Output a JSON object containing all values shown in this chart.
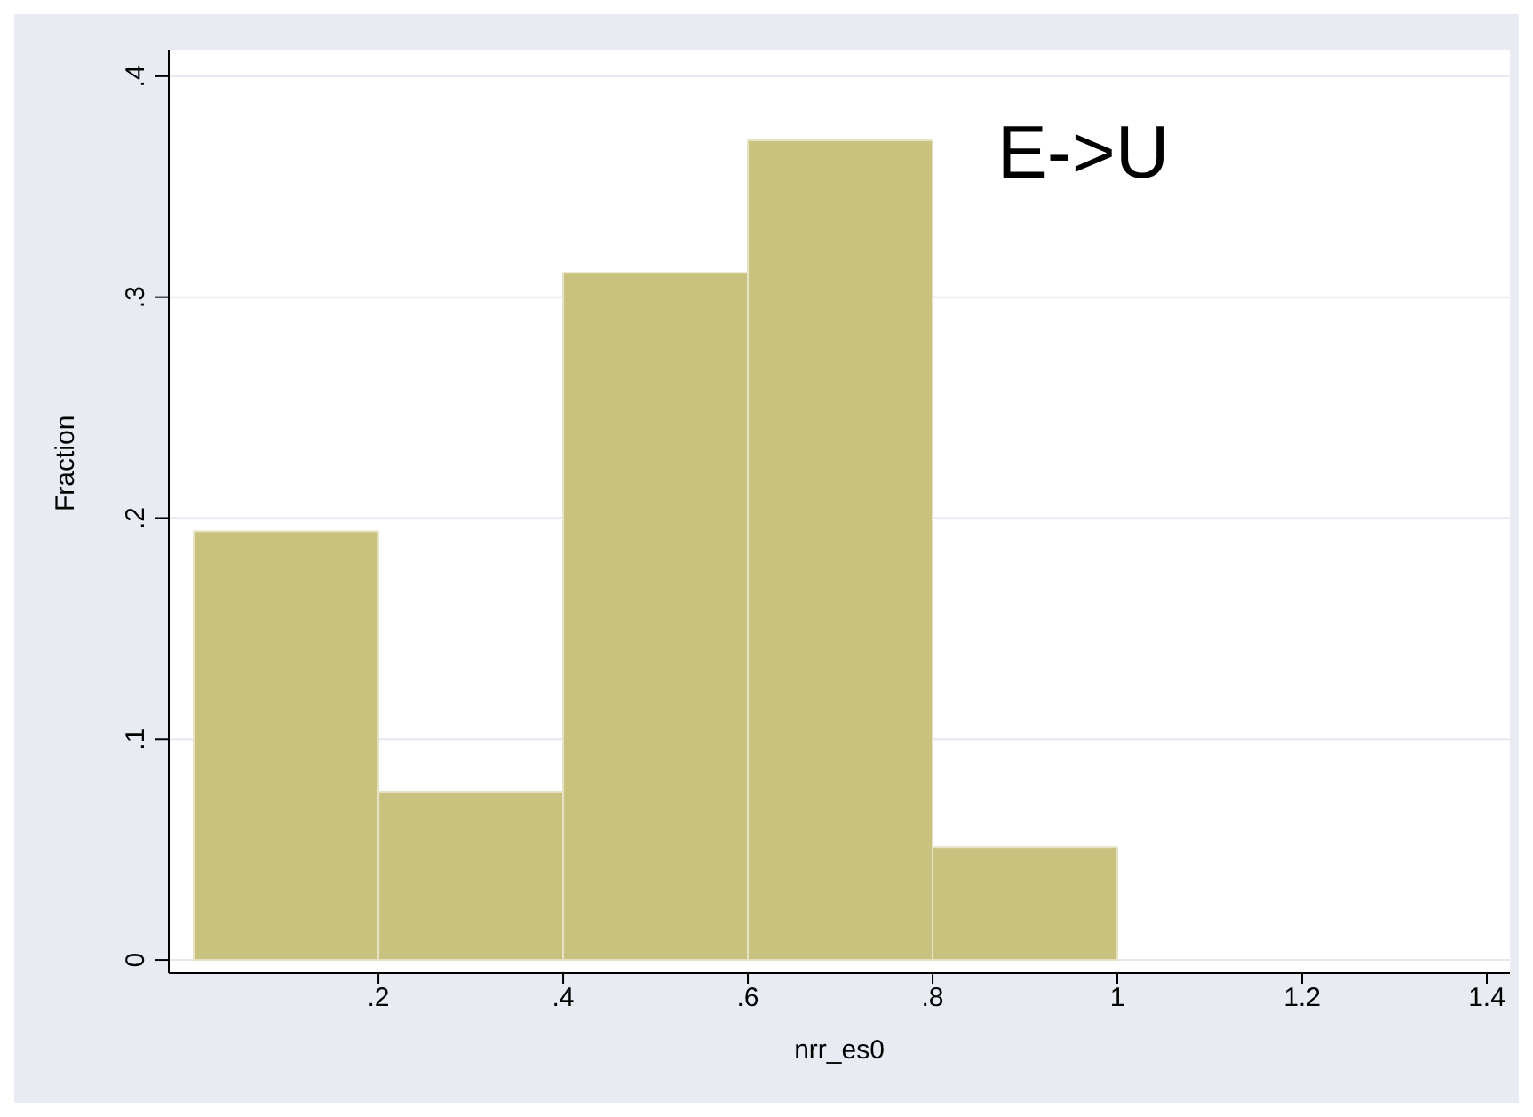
{
  "chart_data": {
    "type": "histogram",
    "xlabel": "nrr_es0",
    "ylabel": "Fraction",
    "bins": [
      0,
      0.2,
      0.4,
      0.6,
      0.8,
      1
    ],
    "values": [
      0.194,
      0.076,
      0.311,
      0.371,
      0.051
    ],
    "color": "#c9c27e",
    "xlim": [
      -0.027,
      1.425
    ],
    "xticks": [
      {
        "value": 0.2,
        "label": ".2"
      },
      {
        "value": 0.4,
        "label": ".4"
      },
      {
        "value": 0.6,
        "label": ".6"
      },
      {
        "value": 0.8,
        "label": ".8"
      },
      1,
      1.2,
      1.4
    ],
    "ylim": [
      -0.006,
      0.412
    ],
    "yticks": [
      0,
      {
        "value": 0.1,
        "label": ".1"
      },
      {
        "value": 0.2,
        "label": ".2"
      },
      {
        "value": 0.3,
        "label": ".3"
      },
      {
        "value": 0.4,
        "label": ".4"
      }
    ],
    "grid": "y",
    "annotations": [
      "E->U"
    ]
  }
}
